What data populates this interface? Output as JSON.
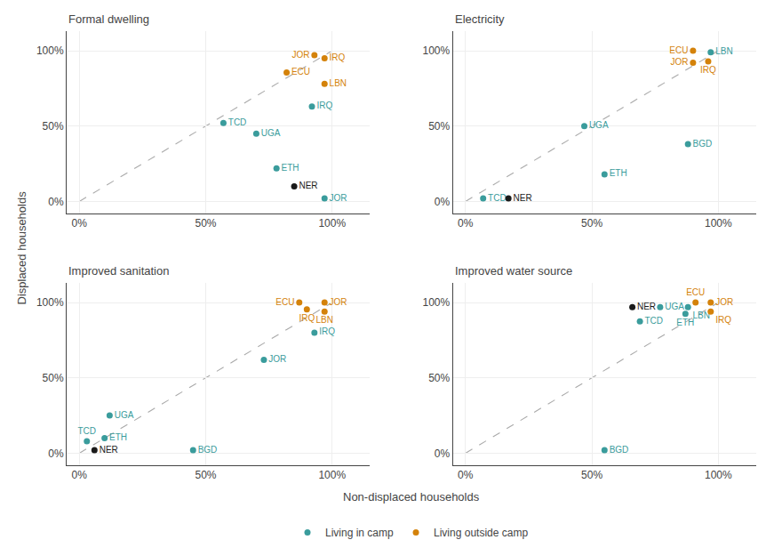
{
  "chart_data": [
    {
      "type": "scatter",
      "title": "Formal dwelling",
      "xlim": [
        -0.05,
        1.15
      ],
      "ylim": [
        -0.08,
        1.13
      ],
      "xticks": [
        {
          "value": 0,
          "label": "0%"
        },
        {
          "value": 0.5,
          "label": "50%"
        },
        {
          "value": 1.0,
          "label": "100%"
        }
      ],
      "yticks": [
        {
          "value": 0,
          "label": "0%"
        },
        {
          "value": 0.5,
          "label": "50%"
        },
        {
          "value": 1.0,
          "label": "100%"
        }
      ],
      "grid": true,
      "series": [
        {
          "name": "Living in camp",
          "color": "#3a9c9c",
          "x": [
            0.57,
            0.7,
            0.78,
            0.92,
            0.97
          ],
          "values": [
            0.52,
            0.45,
            0.22,
            0.63,
            0.02
          ],
          "labels": [
            "TCD",
            "UGA",
            "ETH",
            "IRQ",
            "JOR"
          ]
        },
        {
          "name": "Living outside camp",
          "color": "#d4820a",
          "x": [
            0.93,
            0.97,
            0.82,
            0.97
          ],
          "values": [
            0.97,
            0.95,
            0.855,
            0.78
          ],
          "labels": [
            "JOR",
            "IRQ",
            "ECU",
            "LBN"
          ]
        },
        {
          "color": "#1a1a1a",
          "x": [
            0.85
          ],
          "values": [
            0.1
          ],
          "labels": [
            "NER"
          ]
        }
      ]
    },
    {
      "type": "scatter",
      "title": "Electricity",
      "xlim": [
        -0.05,
        1.15
      ],
      "ylim": [
        -0.08,
        1.13
      ],
      "xticks": [
        {
          "value": 0,
          "label": "0%"
        },
        {
          "value": 0.5,
          "label": "50%"
        },
        {
          "value": 1.0,
          "label": "100%"
        }
      ],
      "yticks": [
        {
          "value": 0,
          "label": "0%"
        },
        {
          "value": 0.5,
          "label": "50%"
        },
        {
          "value": 1.0,
          "label": "100%"
        }
      ],
      "grid": true,
      "series": [
        {
          "name": "Living in camp",
          "color": "#3a9c9c",
          "x": [
            0.07,
            0.47,
            0.55,
            0.88,
            0.97
          ],
          "values": [
            0.02,
            0.5,
            0.18,
            0.38,
            0.99
          ],
          "labels": [
            "TCD",
            "UGA",
            "ETH",
            "BGD",
            "LBN"
          ]
        },
        {
          "name": "Living outside camp",
          "color": "#d4820a",
          "x": [
            0.9,
            0.9,
            0.96
          ],
          "values": [
            1.0,
            0.92,
            0.93
          ],
          "labels": [
            "ECU",
            "JOR",
            "IRQ"
          ]
        },
        {
          "color": "#1a1a1a",
          "x": [
            0.17
          ],
          "values": [
            0.02
          ],
          "labels": [
            "NER"
          ]
        }
      ]
    },
    {
      "type": "scatter",
      "title": "Improved sanitation",
      "xlim": [
        -0.05,
        1.15
      ],
      "ylim": [
        -0.08,
        1.13
      ],
      "xticks": [
        {
          "value": 0,
          "label": "0%"
        },
        {
          "value": 0.5,
          "label": "50%"
        },
        {
          "value": 1.0,
          "label": "100%"
        }
      ],
      "yticks": [
        {
          "value": 0,
          "label": "0%"
        },
        {
          "value": 0.5,
          "label": "50%"
        },
        {
          "value": 1.0,
          "label": "100%"
        }
      ],
      "grid": true,
      "series": [
        {
          "name": "Living in camp",
          "color": "#3a9c9c",
          "x": [
            0.03,
            0.1,
            0.12,
            0.45,
            0.93,
            0.73
          ],
          "values": [
            0.08,
            0.1,
            0.25,
            0.02,
            0.8,
            0.62
          ],
          "labels": [
            "TCD",
            "ETH",
            "UGA",
            "BGD",
            "IRQ",
            "JOR"
          ]
        },
        {
          "name": "Living outside camp",
          "color": "#d4820a",
          "x": [
            0.87,
            0.97,
            0.9,
            0.97
          ],
          "values": [
            1.0,
            1.0,
            0.955,
            0.94
          ],
          "labels": [
            "ECU",
            "JOR",
            "IRQ",
            "LBN"
          ]
        },
        {
          "color": "#1a1a1a",
          "x": [
            0.06
          ],
          "values": [
            0.02
          ],
          "labels": [
            "NER"
          ]
        }
      ]
    },
    {
      "type": "scatter",
      "title": "Improved water source",
      "xlim": [
        -0.05,
        1.15
      ],
      "ylim": [
        -0.08,
        1.13
      ],
      "xticks": [
        {
          "value": 0,
          "label": "0%"
        },
        {
          "value": 0.5,
          "label": "50%"
        },
        {
          "value": 1.0,
          "label": "100%"
        }
      ],
      "yticks": [
        {
          "value": 0,
          "label": "0%"
        },
        {
          "value": 0.5,
          "label": "50%"
        },
        {
          "value": 1.0,
          "label": "100%"
        }
      ],
      "grid": true,
      "series": [
        {
          "name": "Living in camp",
          "color": "#3a9c9c",
          "x": [
            0.55,
            0.69,
            0.77,
            0.87,
            0.88
          ],
          "values": [
            0.02,
            0.875,
            0.97,
            0.925,
            0.97
          ],
          "labels": [
            "BGD",
            "TCD",
            "UGA",
            "ETH",
            "LBN"
          ]
        },
        {
          "name": "Living outside camp",
          "color": "#d4820a",
          "x": [
            0.91,
            0.97,
            0.97
          ],
          "values": [
            1.0,
            1.0,
            0.94
          ],
          "labels": [
            "ECU",
            "JOR",
            "IRQ"
          ]
        },
        {
          "color": "#1a1a1a",
          "x": [
            0.66
          ],
          "values": [
            0.97
          ],
          "labels": [
            "NER"
          ]
        }
      ]
    }
  ],
  "xlabel": "Non-displaced households",
  "ylabel": "Displaced households",
  "legend": "bottom"
}
